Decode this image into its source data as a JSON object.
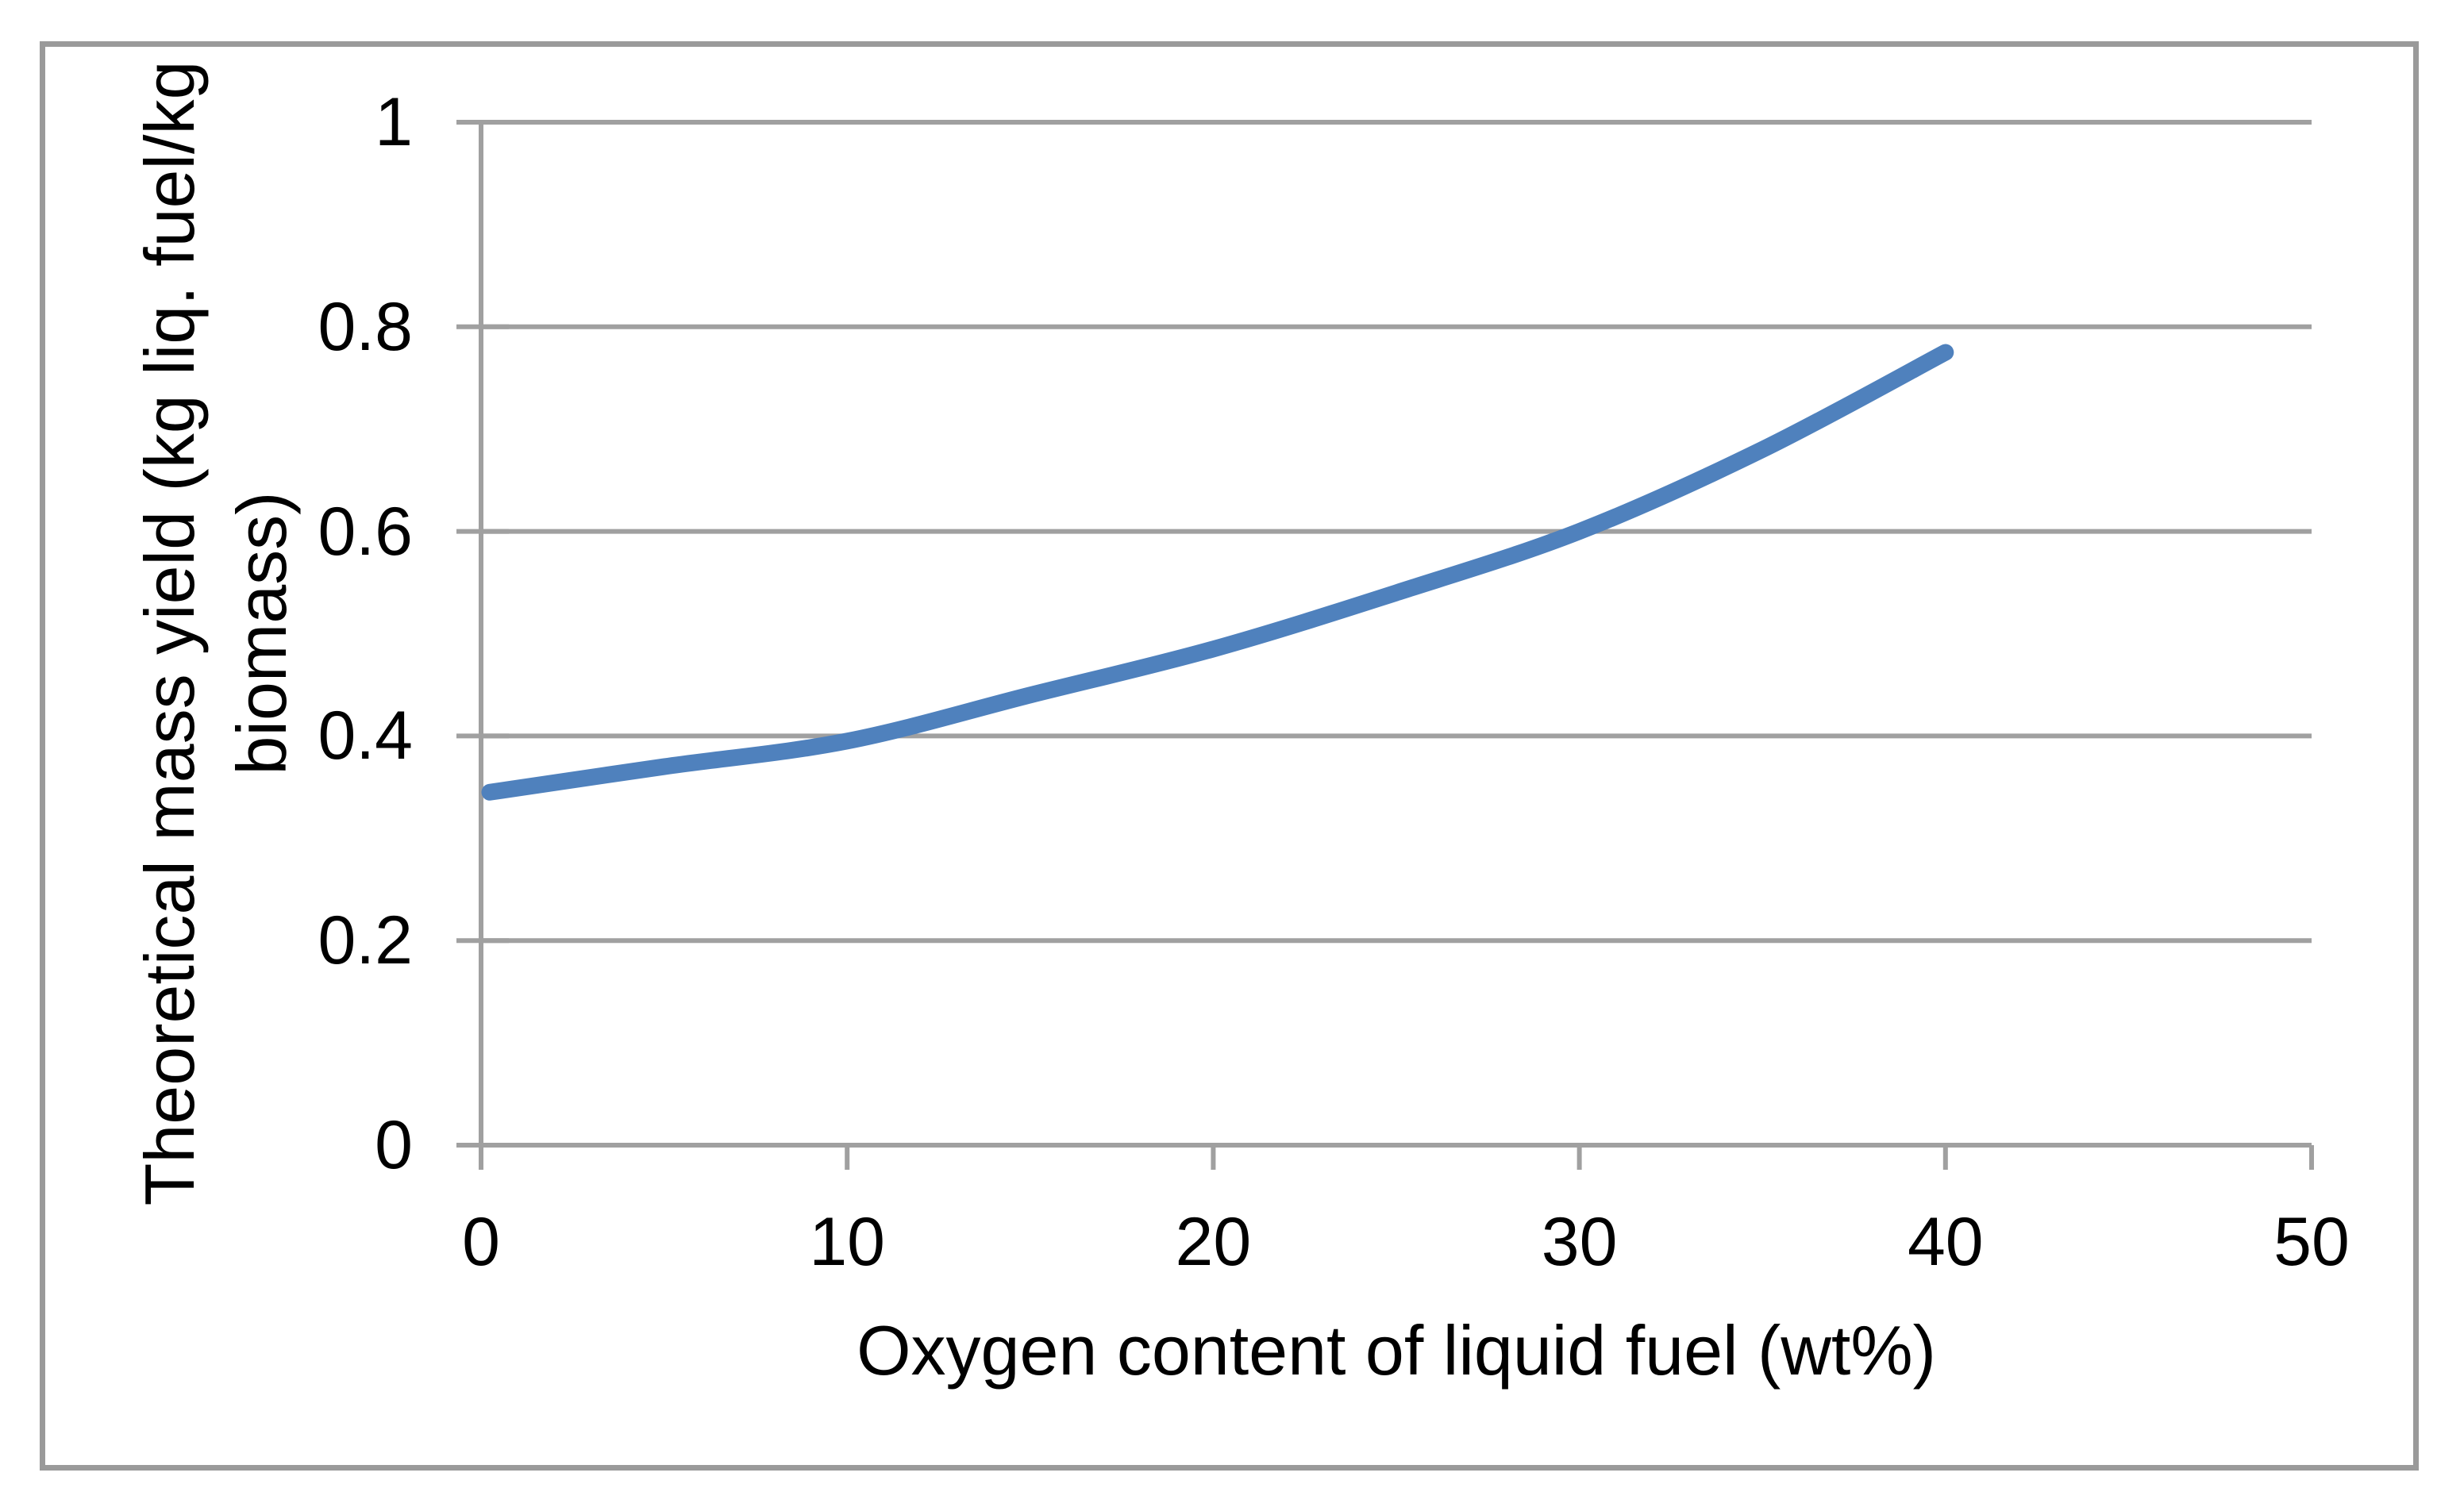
{
  "chart_data": {
    "type": "line",
    "title": "",
    "xlabel": "Oxygen content of liquid fuel (wt%)",
    "ylabel": "Theoretical mass yield (kg liq. fuel/kg biomass)",
    "ylabel_lines": [
      "Theoretical mass yield (kg liq. fuel/kg",
      "biomass)"
    ],
    "series": [
      {
        "name": "theoretical-mass-yield",
        "x": [
          0,
          5,
          10,
          15,
          20,
          25,
          30,
          35,
          40
        ],
        "y": [
          0.345,
          0.37,
          0.395,
          0.44,
          0.485,
          0.54,
          0.6,
          0.68,
          0.775
        ]
      }
    ],
    "xlim": [
      0,
      50
    ],
    "ylim": [
      0,
      1
    ],
    "x_tick_values": [
      0,
      10,
      20,
      30,
      40,
      50
    ],
    "x_tick_labels": [
      "0",
      "10",
      "20",
      "30",
      "40",
      "50"
    ],
    "y_tick_values": [
      0,
      0.2,
      0.4,
      0.6,
      0.8,
      1
    ],
    "y_tick_labels": [
      "0",
      "0.2",
      "0.4",
      "0.6",
      "0.8",
      "1"
    ],
    "grid": "horizontal",
    "legend": "none",
    "colors": {
      "line": "#4F81BD",
      "gridline": "#a0a0a0",
      "axis": "#a0a0a0",
      "chart_border": "#9a9a9a",
      "text": "#000000",
      "background": "#ffffff"
    }
  }
}
